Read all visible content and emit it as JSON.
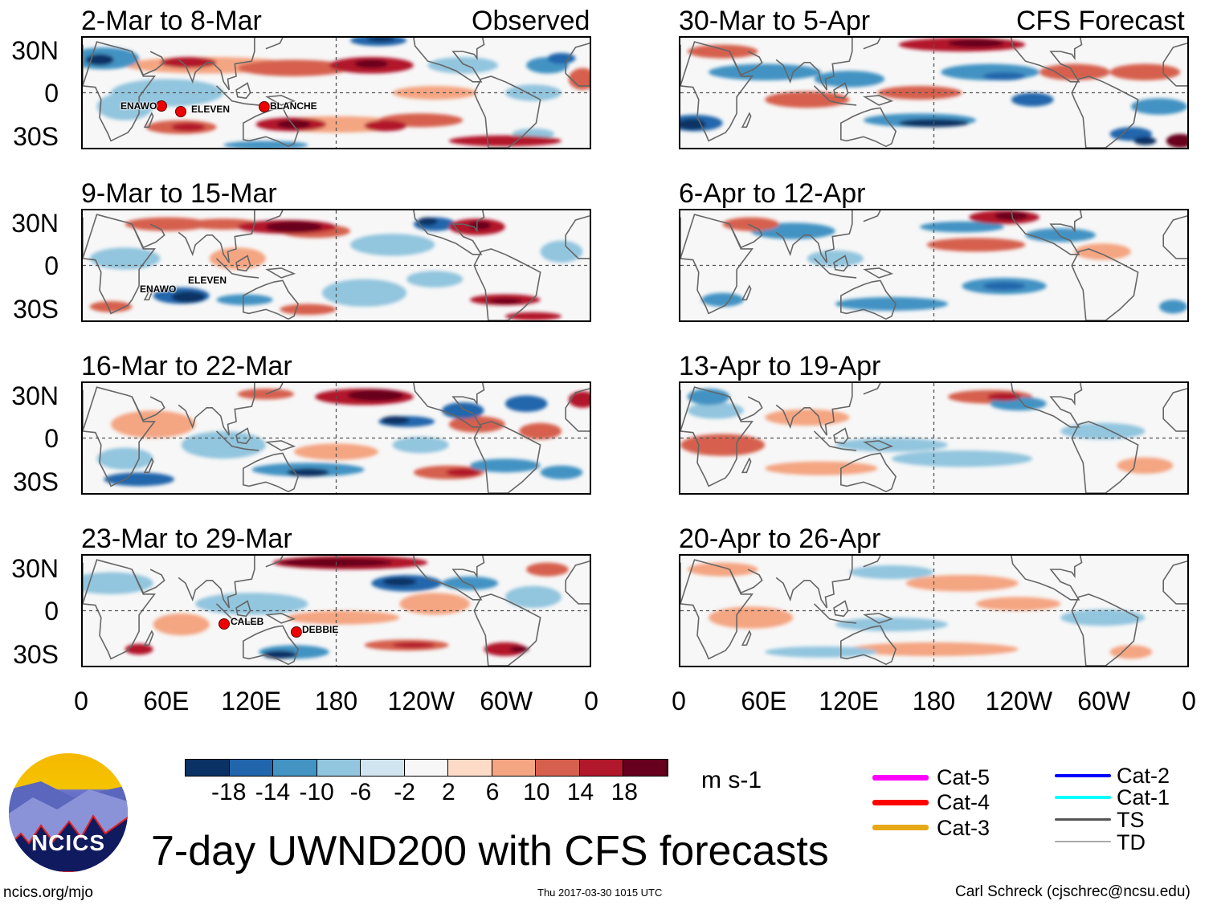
{
  "title": "7-day UWND200 with CFS forecasts",
  "observed_label": "Observed",
  "forecast_label": "CFS Forecast",
  "panels_observed": [
    "2-Mar to 8-Mar",
    "9-Mar to 15-Mar",
    "16-Mar to 22-Mar",
    "23-Mar to 29-Mar"
  ],
  "panels_forecast": [
    "30-Mar to 5-Apr",
    "6-Apr to 12-Apr",
    "13-Apr to 19-Apr",
    "20-Apr to 26-Apr"
  ],
  "lat_labels": [
    "30N",
    "0",
    "30S"
  ],
  "lon_labels": [
    "0",
    "60E",
    "120E",
    "180",
    "120W",
    "60W",
    "0"
  ],
  "storms": {
    "p1": [
      "ENAWO",
      "ELEVEN",
      "BLANCHE"
    ],
    "p2": [
      "ENAWO",
      "ELEVEN"
    ],
    "p4": [
      "CALEB",
      "DEBBIE"
    ]
  },
  "colorbar": {
    "colors": [
      "#0a3264",
      "#2166ac",
      "#4393c3",
      "#92c5de",
      "#d1e5f0",
      "#f7f7f7",
      "#fddbc7",
      "#f4a582",
      "#d6604d",
      "#b2182b",
      "#67001f"
    ],
    "labels": [
      "-18",
      "-14",
      "-10",
      "-6",
      "-2",
      "2",
      "6",
      "10",
      "14",
      "18"
    ],
    "units": "m s-1"
  },
  "storm_legend": [
    {
      "label": "Cat-5",
      "color": "#ff00ff"
    },
    {
      "label": "Cat-4",
      "color": "#ff0000"
    },
    {
      "label": "Cat-3",
      "color": "#e6a817"
    },
    {
      "label": "Cat-2",
      "color": "#0000ff"
    },
    {
      "label": "Cat-1",
      "color": "#00ffff"
    },
    {
      "label": "TS",
      "color": "#555555"
    },
    {
      "label": "TD",
      "color": "#aaaaaa"
    }
  ],
  "logo_text": "NCICS",
  "footer": {
    "left": "ncics.org/mjo",
    "center": "Thu 2017-03-30 1015 UTC",
    "right": "Carl Schreck (cjschrec@ncsu.edu)"
  },
  "chart_data": {
    "type": "heatmap",
    "title": "7-day UWND200 with CFS forecasts",
    "variable": "200-hPa zonal wind anomaly",
    "units": "m s-1",
    "levels": [
      -18,
      -14,
      -10,
      -6,
      -2,
      2,
      6,
      10,
      14,
      18
    ],
    "x_ticks": [
      "0",
      "60E",
      "120E",
      "180",
      "120W",
      "60W",
      "0"
    ],
    "y_ticks": [
      "30N",
      "0",
      "30S"
    ]
  }
}
